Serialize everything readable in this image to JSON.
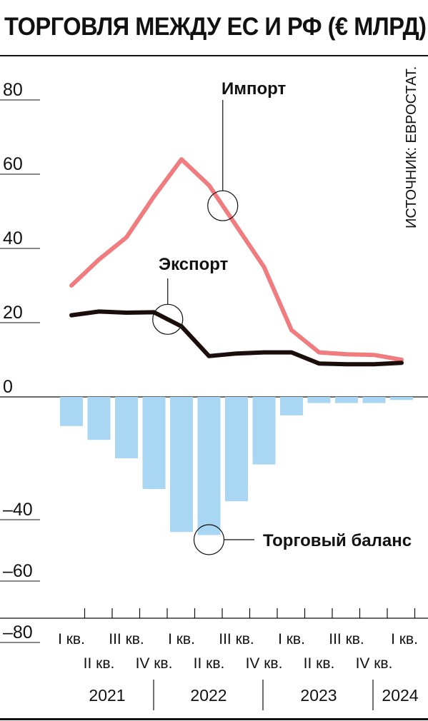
{
  "title": "ТОРГОВЛЯ МЕЖДУ ЕС И РФ (€ МЛРД)",
  "source": "ИСТОЧНИК: ЕВРОСТАТ.",
  "colors": {
    "import": "#f07c80",
    "export": "#1a0d0a",
    "balance": "#a9d6f2",
    "axis": "#111111"
  },
  "chart_data": {
    "type": "line",
    "categories": [
      "I кв.",
      "II кв.",
      "III кв.",
      "IV кв.",
      "I кв.",
      "II кв.",
      "III кв.",
      "IV кв.",
      "I кв.",
      "II кв.",
      "III кв.",
      "IV кв.",
      "I кв."
    ],
    "category_rows": [
      0,
      1,
      0,
      1,
      0,
      1,
      0,
      1,
      0,
      1,
      0,
      1,
      0
    ],
    "years": [
      {
        "label": "2021",
        "from": 0,
        "to": 3
      },
      {
        "label": "2022",
        "from": 4,
        "to": 7
      },
      {
        "label": "2023",
        "from": 8,
        "to": 11
      },
      {
        "label": "2024",
        "from": 12,
        "to": 12
      }
    ],
    "series": [
      {
        "name": "Импорт",
        "type": "line",
        "color": "#f07c80",
        "values": [
          30,
          37,
          43,
          54,
          64,
          57,
          46,
          35,
          18,
          12,
          11.5,
          11.3,
          10
        ]
      },
      {
        "name": "Экспорт",
        "type": "line",
        "color": "#1a0d0a",
        "values": [
          22,
          23,
          22.7,
          22.8,
          19,
          11,
          11.7,
          12,
          12,
          9,
          8.8,
          8.8,
          9.2
        ]
      },
      {
        "name": "Торговый баланс",
        "type": "bar",
        "color": "#a9d6f2",
        "values": [
          -9.5,
          -14,
          -20,
          -30,
          -44,
          -45,
          -34,
          -22,
          -6,
          -2,
          -2,
          -2,
          -1
        ]
      }
    ],
    "y_ticks_top": [
      80,
      60,
      40,
      20,
      0
    ],
    "y_ticks_bottom": [
      -40,
      -60,
      -80
    ],
    "ylim": [
      -80,
      80
    ],
    "legend": "inline labels"
  }
}
